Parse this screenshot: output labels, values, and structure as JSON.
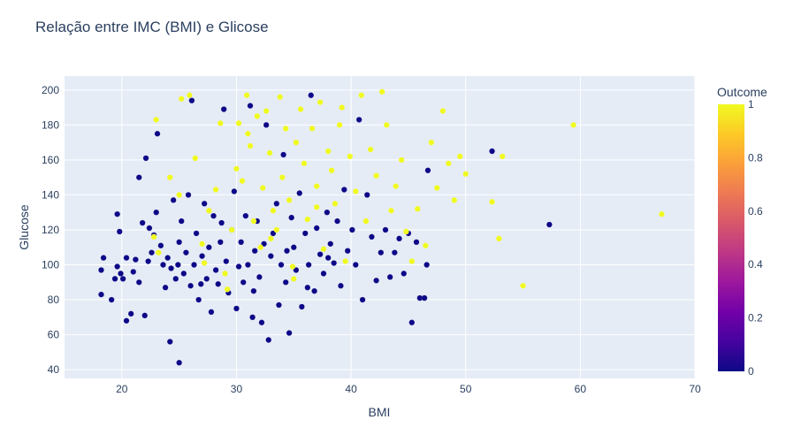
{
  "chart_data": {
    "type": "scatter",
    "title": "Relação entre IMC (BMI) e Glicose",
    "xlabel": "BMI",
    "ylabel": "Glucose",
    "xlim": [
      15,
      70
    ],
    "ylim": [
      35,
      208
    ],
    "x_ticks": [
      "20",
      "30",
      "40",
      "50",
      "60",
      "70"
    ],
    "y_ticks": [
      "40",
      "60",
      "80",
      "100",
      "120",
      "140",
      "160",
      "180",
      "200"
    ],
    "grid": true,
    "colorbar": {
      "title": "Outcome",
      "ticks": [
        "0",
        "0.2",
        "0.4",
        "0.6",
        "0.8",
        "1"
      ],
      "colorscale": [
        "#0d0887",
        "#46039f",
        "#7201a8",
        "#9c179e",
        "#bd3786",
        "#d8576b",
        "#ed7953",
        "#fb9f3a",
        "#fdca26",
        "#f0f921"
      ]
    },
    "colors": {
      "outcome_0": "#0d0887",
      "outcome_1": "#f0f921",
      "plot_bg": "#e5ecf6"
    },
    "points": [
      [
        18.2,
        83,
        0
      ],
      [
        18.2,
        97,
        0
      ],
      [
        18.4,
        104,
        0
      ],
      [
        19.1,
        80,
        0
      ],
      [
        19.4,
        92,
        0
      ],
      [
        19.6,
        99,
        0
      ],
      [
        19.6,
        129,
        0
      ],
      [
        19.8,
        119,
        0
      ],
      [
        19.9,
        95,
        0
      ],
      [
        20.1,
        92,
        0
      ],
      [
        20.4,
        104,
        0
      ],
      [
        20.4,
        68,
        0
      ],
      [
        20.8,
        72,
        0
      ],
      [
        21.0,
        96,
        0
      ],
      [
        21.2,
        103,
        0
      ],
      [
        21.5,
        90,
        0
      ],
      [
        21.5,
        150,
        0
      ],
      [
        21.8,
        124,
        0
      ],
      [
        22.0,
        71,
        0
      ],
      [
        22.1,
        161,
        0
      ],
      [
        22.3,
        102,
        0
      ],
      [
        22.4,
        121,
        0
      ],
      [
        22.6,
        107,
        0
      ],
      [
        22.8,
        117,
        0
      ],
      [
        23.0,
        130,
        0
      ],
      [
        23.1,
        175,
        0
      ],
      [
        23.4,
        111,
        0
      ],
      [
        23.6,
        100,
        0
      ],
      [
        23.8,
        87,
        0
      ],
      [
        24.0,
        104,
        0
      ],
      [
        24.2,
        56,
        0
      ],
      [
        24.3,
        98,
        0
      ],
      [
        24.5,
        137,
        0
      ],
      [
        24.7,
        92,
        0
      ],
      [
        25.0,
        44,
        0
      ],
      [
        25.0,
        113,
        0
      ],
      [
        25.2,
        125,
        0
      ],
      [
        25.4,
        95,
        0
      ],
      [
        25.6,
        107,
        0
      ],
      [
        25.8,
        140,
        0
      ],
      [
        26.0,
        88,
        0
      ],
      [
        26.1,
        194,
        0
      ],
      [
        26.3,
        100,
        0
      ],
      [
        26.5,
        118,
        0
      ],
      [
        26.7,
        80,
        0
      ],
      [
        27.0,
        105,
        0
      ],
      [
        27.2,
        135,
        0
      ],
      [
        27.4,
        92,
        0
      ],
      [
        27.6,
        110,
        0
      ],
      [
        27.8,
        73,
        0
      ],
      [
        28.0,
        128,
        0
      ],
      [
        28.2,
        97,
        0
      ],
      [
        28.4,
        89,
        0
      ],
      [
        28.6,
        113,
        0
      ],
      [
        28.9,
        189,
        0
      ],
      [
        29.1,
        102,
        0
      ],
      [
        29.3,
        84,
        0
      ],
      [
        29.6,
        120,
        0
      ],
      [
        29.8,
        142,
        0
      ],
      [
        30.0,
        75,
        0
      ],
      [
        30.2,
        99,
        0
      ],
      [
        30.4,
        113,
        0
      ],
      [
        30.6,
        90,
        0
      ],
      [
        30.8,
        128,
        0
      ],
      [
        31.0,
        100,
        0
      ],
      [
        31.2,
        191,
        0
      ],
      [
        31.4,
        70,
        0
      ],
      [
        31.6,
        108,
        0
      ],
      [
        31.8,
        125,
        0
      ],
      [
        32.0,
        93,
        0
      ],
      [
        32.2,
        67,
        0
      ],
      [
        32.4,
        112,
        0
      ],
      [
        32.6,
        180,
        0
      ],
      [
        32.8,
        57,
        0
      ],
      [
        33.0,
        105,
        0
      ],
      [
        33.2,
        118,
        0
      ],
      [
        33.5,
        135,
        0
      ],
      [
        33.7,
        77,
        0
      ],
      [
        33.9,
        100,
        0
      ],
      [
        34.1,
        163,
        0
      ],
      [
        34.3,
        90,
        0
      ],
      [
        34.6,
        61,
        0
      ],
      [
        34.8,
        127,
        0
      ],
      [
        35.0,
        110,
        0
      ],
      [
        35.2,
        97,
        0
      ],
      [
        35.5,
        141,
        0
      ],
      [
        35.7,
        76,
        0
      ],
      [
        36.0,
        118,
        0
      ],
      [
        36.3,
        100,
        0
      ],
      [
        36.5,
        197,
        0
      ],
      [
        36.8,
        85,
        0
      ],
      [
        37.0,
        121,
        0
      ],
      [
        37.3,
        106,
        0
      ],
      [
        37.6,
        95,
        0
      ],
      [
        37.9,
        130,
        0
      ],
      [
        38.2,
        112,
        0
      ],
      [
        38.5,
        101,
        0
      ],
      [
        38.8,
        125,
        0
      ],
      [
        39.1,
        88,
        0
      ],
      [
        39.4,
        143,
        0
      ],
      [
        39.7,
        108,
        0
      ],
      [
        40.1,
        120,
        0
      ],
      [
        40.4,
        100,
        0
      ],
      [
        40.7,
        183,
        0
      ],
      [
        41.0,
        80,
        0
      ],
      [
        41.4,
        140,
        0
      ],
      [
        41.8,
        116,
        0
      ],
      [
        42.2,
        91,
        0
      ],
      [
        42.6,
        107,
        0
      ],
      [
        43.0,
        120,
        0
      ],
      [
        43.4,
        93,
        0
      ],
      [
        43.8,
        107,
        0
      ],
      [
        44.2,
        115,
        0
      ],
      [
        44.6,
        95,
        0
      ],
      [
        45.0,
        118,
        0
      ],
      [
        45.3,
        67,
        0
      ],
      [
        45.7,
        113,
        0
      ],
      [
        46.0,
        81,
        0
      ],
      [
        46.4,
        81,
        0
      ],
      [
        46.6,
        100,
        0
      ],
      [
        46.7,
        154,
        0
      ],
      [
        52.3,
        165,
        0
      ],
      [
        57.3,
        123,
        0
      ],
      [
        24.9,
        100,
        0
      ],
      [
        26.9,
        89,
        0
      ],
      [
        28.7,
        124,
        0
      ],
      [
        31.5,
        85,
        0
      ],
      [
        34.4,
        108,
        0
      ],
      [
        36.2,
        87,
        0
      ],
      [
        38.0,
        104,
        0
      ],
      [
        23.0,
        183,
        1
      ],
      [
        23.2,
        107,
        1
      ],
      [
        24.2,
        150,
        1
      ],
      [
        25.2,
        195,
        1
      ],
      [
        25.9,
        197,
        1
      ],
      [
        26.4,
        161,
        1
      ],
      [
        27.0,
        112,
        1
      ],
      [
        27.6,
        131,
        1
      ],
      [
        28.2,
        143,
        1
      ],
      [
        28.6,
        181,
        1
      ],
      [
        29.0,
        95,
        1
      ],
      [
        29.6,
        120,
        1
      ],
      [
        30.0,
        155,
        1
      ],
      [
        30.2,
        181,
        1
      ],
      [
        30.5,
        148,
        1
      ],
      [
        30.9,
        197,
        1
      ],
      [
        31.2,
        168,
        1
      ],
      [
        31.5,
        125,
        1
      ],
      [
        31.8,
        185,
        1
      ],
      [
        32.1,
        110,
        1
      ],
      [
        32.3,
        144,
        1
      ],
      [
        32.6,
        188,
        1
      ],
      [
        32.9,
        164,
        1
      ],
      [
        33.2,
        131,
        1
      ],
      [
        33.5,
        120,
        1
      ],
      [
        33.8,
        196,
        1
      ],
      [
        34.0,
        150,
        1
      ],
      [
        34.3,
        178,
        1
      ],
      [
        34.6,
        137,
        1
      ],
      [
        34.9,
        99,
        1
      ],
      [
        35.2,
        170,
        1
      ],
      [
        35.6,
        189,
        1
      ],
      [
        35.9,
        158,
        1
      ],
      [
        36.2,
        126,
        1
      ],
      [
        36.6,
        178,
        1
      ],
      [
        37.0,
        145,
        1
      ],
      [
        37.3,
        193,
        1
      ],
      [
        37.6,
        109,
        1
      ],
      [
        38.0,
        165,
        1
      ],
      [
        38.3,
        154,
        1
      ],
      [
        38.6,
        135,
        1
      ],
      [
        39.0,
        180,
        1
      ],
      [
        39.5,
        102,
        1
      ],
      [
        39.9,
        162,
        1
      ],
      [
        40.4,
        142,
        1
      ],
      [
        40.9,
        197,
        1
      ],
      [
        41.3,
        125,
        1
      ],
      [
        41.7,
        166,
        1
      ],
      [
        42.2,
        151,
        1
      ],
      [
        42.7,
        199,
        1
      ],
      [
        43.1,
        180,
        1
      ],
      [
        43.5,
        131,
        1
      ],
      [
        43.9,
        145,
        1
      ],
      [
        44.4,
        160,
        1
      ],
      [
        44.8,
        119,
        1
      ],
      [
        45.3,
        102,
        1
      ],
      [
        45.8,
        132,
        1
      ],
      [
        46.5,
        111,
        1
      ],
      [
        47.0,
        170,
        1
      ],
      [
        47.5,
        144,
        1
      ],
      [
        48.0,
        188,
        1
      ],
      [
        48.5,
        158,
        1
      ],
      [
        49.0,
        137,
        1
      ],
      [
        49.5,
        162,
        1
      ],
      [
        50.0,
        152,
        1
      ],
      [
        52.3,
        136,
        1
      ],
      [
        52.9,
        115,
        1
      ],
      [
        53.2,
        162,
        1
      ],
      [
        55.0,
        88,
        1
      ],
      [
        59.4,
        180,
        1
      ],
      [
        67.1,
        129,
        1
      ],
      [
        22.8,
        116,
        1
      ],
      [
        25.0,
        140,
        1
      ],
      [
        27.2,
        101,
        1
      ],
      [
        29.2,
        86,
        1
      ],
      [
        31.0,
        175,
        1
      ],
      [
        33.0,
        115,
        1
      ],
      [
        35.0,
        92,
        1
      ],
      [
        37.0,
        133,
        1
      ],
      [
        39.2,
        190,
        1
      ]
    ]
  }
}
